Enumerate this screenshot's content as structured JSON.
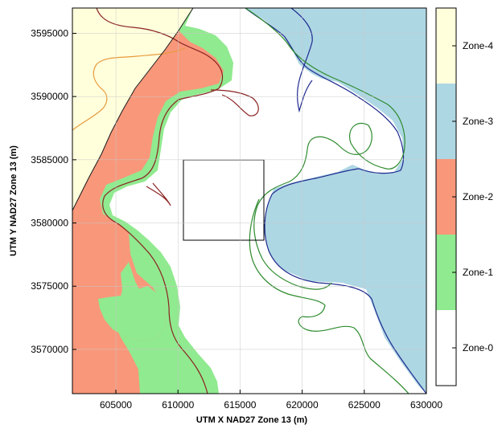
{
  "map": {
    "xlabel": "UTM X NAD27 Zone 13 (m)",
    "ylabel": "UTM Y NAD27 Zone 13 (m)",
    "x_ticks": [
      "605000",
      "610000",
      "615000",
      "620000",
      "625000",
      "630000"
    ],
    "y_ticks": [
      "3595000",
      "3590000",
      "3585000",
      "3580000",
      "3575000",
      "3570000"
    ],
    "x_range": [
      601500,
      630000
    ],
    "y_range": [
      3566500,
      3597000
    ],
    "grid": true
  },
  "legend": {
    "zones": [
      {
        "label": "Zone-4",
        "color": "#ffffdc"
      },
      {
        "label": "Zone-3",
        "color": "#aed7e4"
      },
      {
        "label": "Zone-2",
        "color": "#f9977a"
      },
      {
        "label": "Zone-1",
        "color": "#90ea8f"
      },
      {
        "label": "Zone-0",
        "color": "#ffffff"
      }
    ]
  },
  "colors": {
    "zone_4": "#ffffdc",
    "zone_3": "#aed7e4",
    "zone_2": "#f9977a",
    "zone_1": "#90ea8f",
    "zone_0": "#ffffff",
    "contour_dark_red": "#8b2323",
    "contour_orange": "#e89a3c",
    "contour_green": "#2e8b2e",
    "contour_blue": "#1f2a8f"
  }
}
